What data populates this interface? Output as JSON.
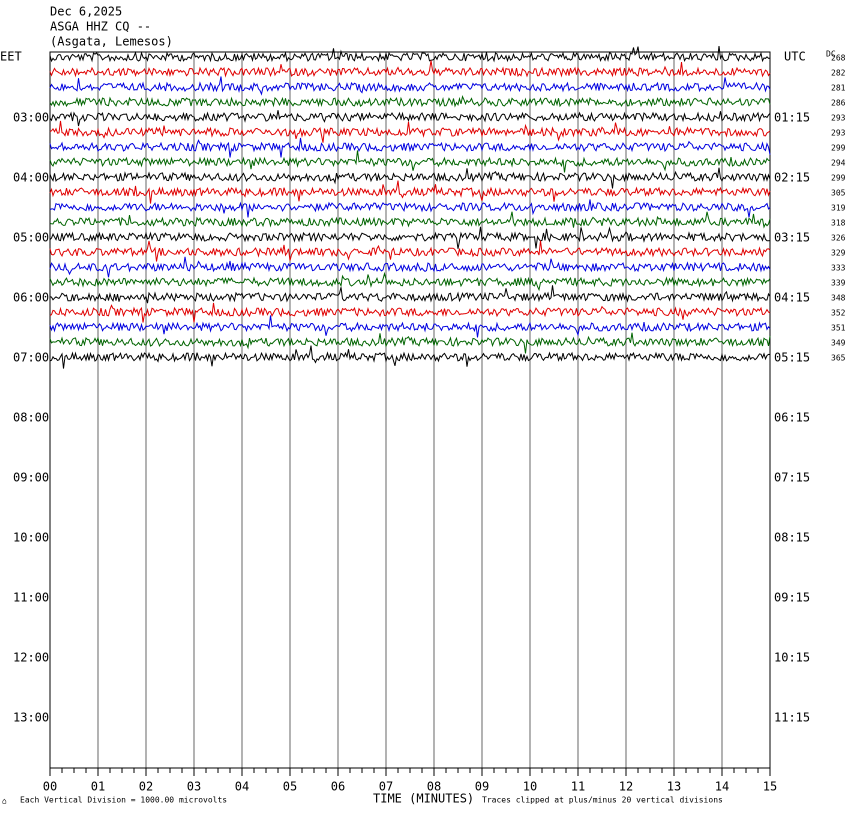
{
  "header": {
    "date": "Dec 6,2025",
    "station": "ASGA HHZ CQ --",
    "location": "(Asgata, Lemesos)"
  },
  "left_labels": [
    "EET",
    "03:00",
    "04:00",
    "05:00",
    "06:00",
    "07:00",
    "08:00",
    "09:00",
    "10:00",
    "11:00",
    "12:00",
    "13:00"
  ],
  "right_labels": [
    "UTC",
    "01:15",
    "02:15",
    "03:15",
    "04:15",
    "05:15",
    "06:15",
    "07:15",
    "08:15",
    "09:15",
    "10:15",
    "11:15"
  ],
  "dc_label": "DC",
  "dc_values": [
    268,
    282,
    281,
    286,
    293,
    293,
    299,
    294,
    299,
    305,
    319,
    318,
    326,
    329,
    333,
    339,
    348,
    352,
    351,
    349,
    365
  ],
  "x_axis": {
    "label": "TIME (MINUTES)",
    "ticks": [
      "00",
      "01",
      "02",
      "03",
      "04",
      "05",
      "06",
      "07",
      "08",
      "09",
      "10",
      "11",
      "12",
      "13",
      "14",
      "15"
    ]
  },
  "footer": {
    "scale": "Each Vertical Division = 1000.00 microvolts",
    "clip": "Traces clipped at plus/minus 20 vertical divisions"
  }
}
